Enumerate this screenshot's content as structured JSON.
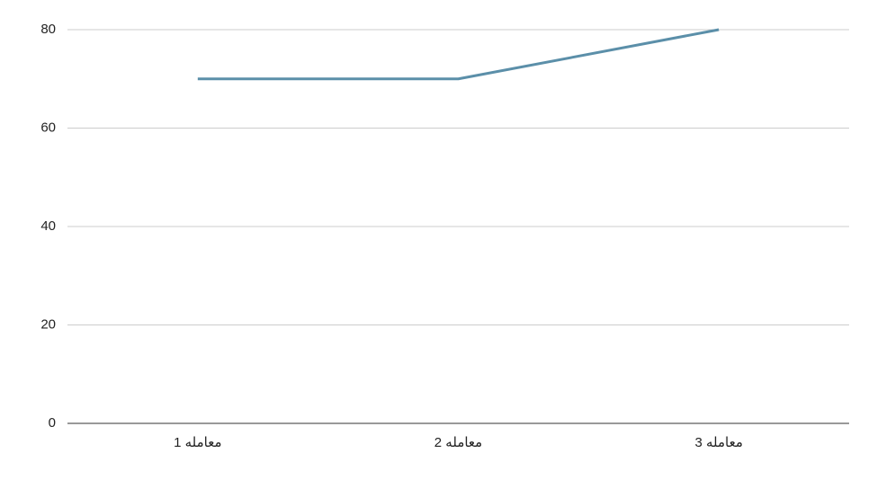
{
  "chart_data": {
    "type": "line",
    "categories": [
      "معامله 1",
      "معامله 2",
      "معامله 3"
    ],
    "series": [
      {
        "color": "#5b8fa9",
        "values": [
          70,
          70,
          80
        ]
      }
    ],
    "ylim": [
      0,
      80
    ],
    "yticks": [
      0,
      20,
      40,
      60,
      80
    ],
    "grid": true
  }
}
